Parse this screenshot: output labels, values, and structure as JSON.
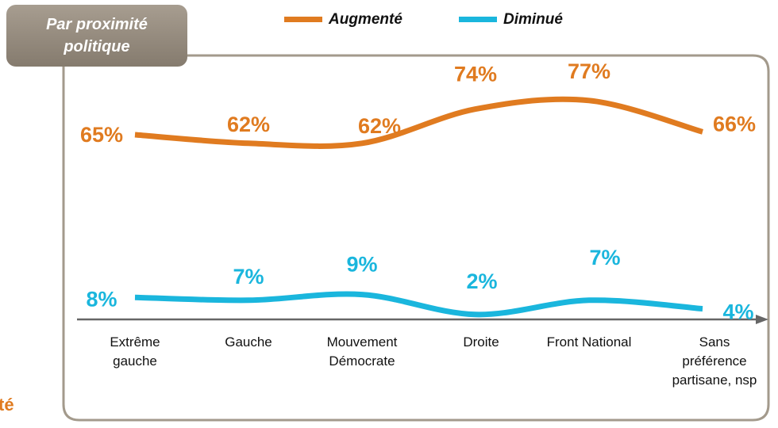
{
  "chart_data": {
    "type": "line",
    "title": "Par proximité\npolitique",
    "annotation": "té",
    "categories": [
      "Extrême\ngauche",
      "Gauche",
      "Mouvement\nDémocrate",
      "Droite",
      "Front National",
      "Sans\npréférence\npartisane, nsp"
    ],
    "series": [
      {
        "name": "Augmenté",
        "color": "#e07b20",
        "values": [
          65,
          62,
          62,
          74,
          77,
          66
        ],
        "value_labels": [
          "65%",
          "62%",
          "62%",
          "74%",
          "77%",
          "66%"
        ]
      },
      {
        "name": "Diminué",
        "color": "#1ab6dd",
        "values": [
          8,
          7,
          9,
          2,
          7,
          4
        ],
        "value_labels": [
          "8%",
          "7%",
          "9%",
          "2%",
          "7%",
          "4%"
        ]
      }
    ],
    "legend": "top"
  }
}
